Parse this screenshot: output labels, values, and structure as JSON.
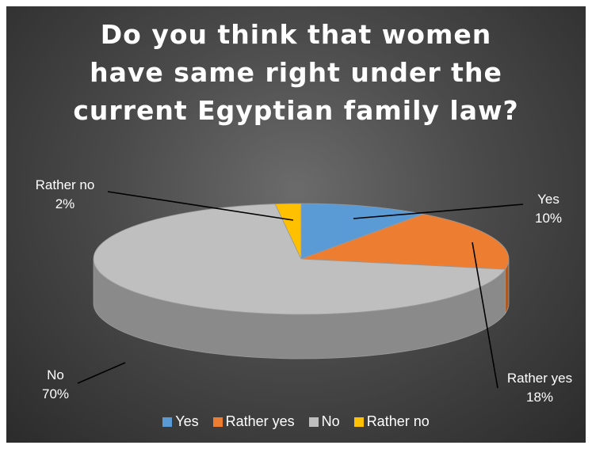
{
  "chart_data": {
    "type": "pie",
    "title_lines": [
      "Do you think that women",
      "have same right under the",
      "current Egyptian family law?"
    ],
    "categories": [
      "Yes",
      "Rather yes",
      "No",
      "Rather no"
    ],
    "values": [
      10,
      18,
      70,
      2
    ],
    "value_labels": [
      "10%",
      "18%",
      "70%",
      "2%"
    ],
    "colors": [
      "#5b9bd5",
      "#ed7d31",
      "#bfbfbf",
      "#ffc000"
    ],
    "legend_position": "bottom",
    "style": "3d"
  }
}
